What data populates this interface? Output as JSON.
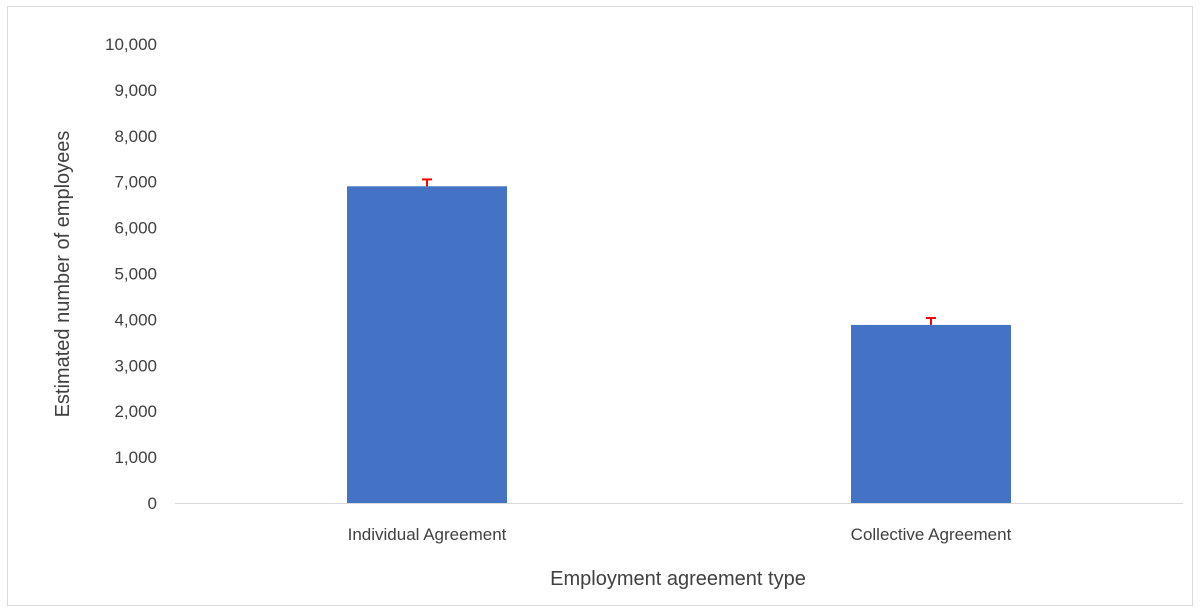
{
  "chart_data": {
    "type": "bar",
    "title": "",
    "xlabel": "Employment agreement type",
    "ylabel": "Estimated number of employees",
    "categories": [
      "Individual Agreement",
      "Collective Agreement"
    ],
    "values": [
      6900,
      3880
    ],
    "error_bars": [
      150,
      150
    ],
    "ylim": [
      0,
      10000
    ],
    "y_ticks": [
      0,
      1000,
      2000,
      3000,
      4000,
      5000,
      6000,
      7000,
      8000,
      9000,
      10000
    ],
    "y_tick_labels": [
      "0",
      "1,000",
      "2,000",
      "3,000",
      "4,000",
      "5,000",
      "6,000",
      "7,000",
      "8,000",
      "9,000",
      "10,000"
    ],
    "grid": false,
    "legend": "none",
    "colors": {
      "bar": "#4472c4",
      "error_bar": "#ff0000",
      "axis_line": "#d9d9d9",
      "text": "#404040"
    }
  }
}
